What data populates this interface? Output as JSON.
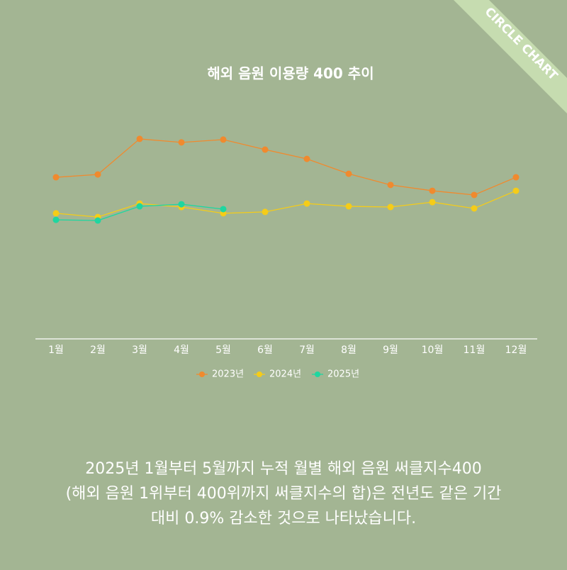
{
  "corner_label": "CIRCLE CHART",
  "chart_data": {
    "type": "line",
    "title": "해외 음원 이용량 400 추이",
    "categories": [
      "1월",
      "2월",
      "3월",
      "4월",
      "5월",
      "6월",
      "7월",
      "8월",
      "9월",
      "10월",
      "11월",
      "12월"
    ],
    "series": [
      {
        "name": "2023년",
        "color": "#f08a2e",
        "values": [
          69.5,
          70.7,
          86,
          84.5,
          85.7,
          81.4,
          77.4,
          71,
          66.2,
          63.7,
          61.9,
          69.5
        ]
      },
      {
        "name": "2024년",
        "color": "#f5cc18",
        "values": [
          54,
          52.4,
          58.2,
          56.7,
          54,
          54.6,
          58.2,
          57,
          56.7,
          58.8,
          56.1,
          63.7
        ]
      },
      {
        "name": "2025년",
        "color": "#1fd6a0",
        "values": [
          51.2,
          50.9,
          57,
          57.9,
          55.8,
          null,
          null,
          null,
          null,
          null,
          null,
          null
        ]
      }
    ],
    "ylim": [
      0,
      100
    ],
    "legend": "bottom"
  },
  "description": [
    "2025년 1월부터 5월까지 누적 월별 해외 음원 써클지수400",
    "(해외 음원 1위부터 400위까지 써클지수의 합)은 전년도 같은 기간",
    "대비 0.9% 감소한 것으로 나타났습니다."
  ]
}
